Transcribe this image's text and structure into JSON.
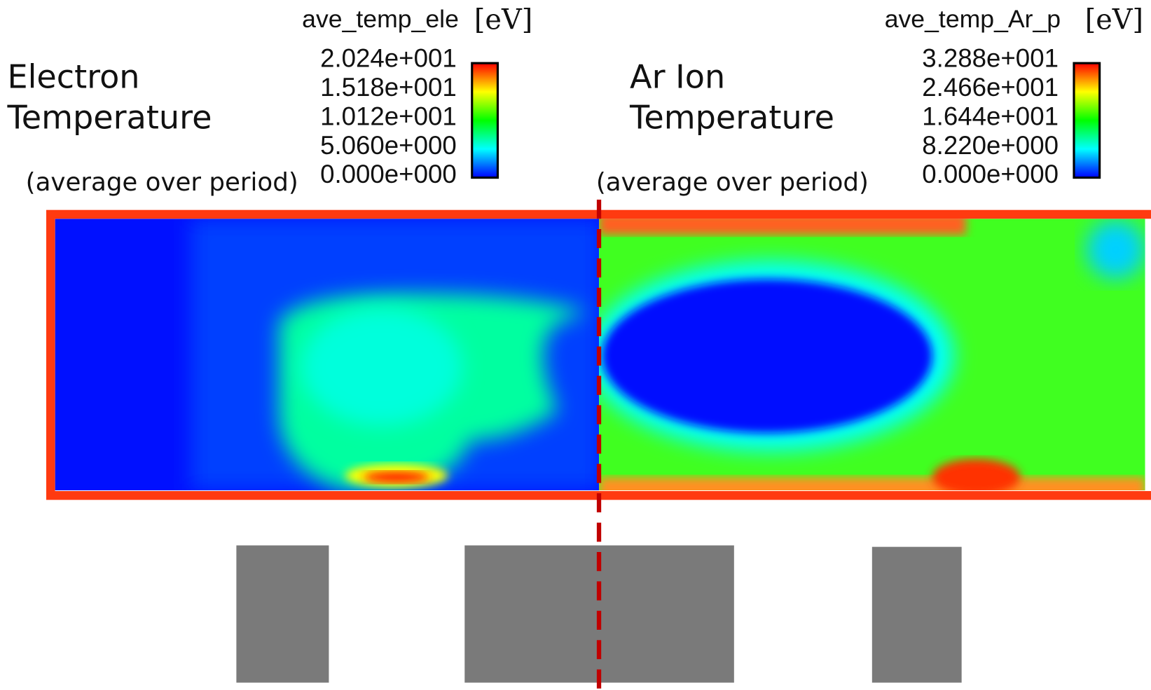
{
  "panels": [
    {
      "title": [
        "Electron",
        "Temperature"
      ],
      "subtitle": "(average over period)",
      "colorbar": {
        "label": "ave_temp_ele",
        "unit": "[eV]",
        "ticks": [
          "2.024e+001",
          "1.518e+001",
          "1.012e+001",
          "5.060e+000",
          "0.000e+000"
        ]
      }
    },
    {
      "title": [
        "Ar Ion",
        "Temperature"
      ],
      "subtitle": "(average over period)",
      "colorbar": {
        "label": "ave_temp_Ar_p",
        "unit": "[eV]",
        "ticks": [
          "3.288e+001",
          "2.466e+001",
          "1.644e+001",
          "8.220e+000",
          "0.000e+000"
        ]
      }
    }
  ]
}
